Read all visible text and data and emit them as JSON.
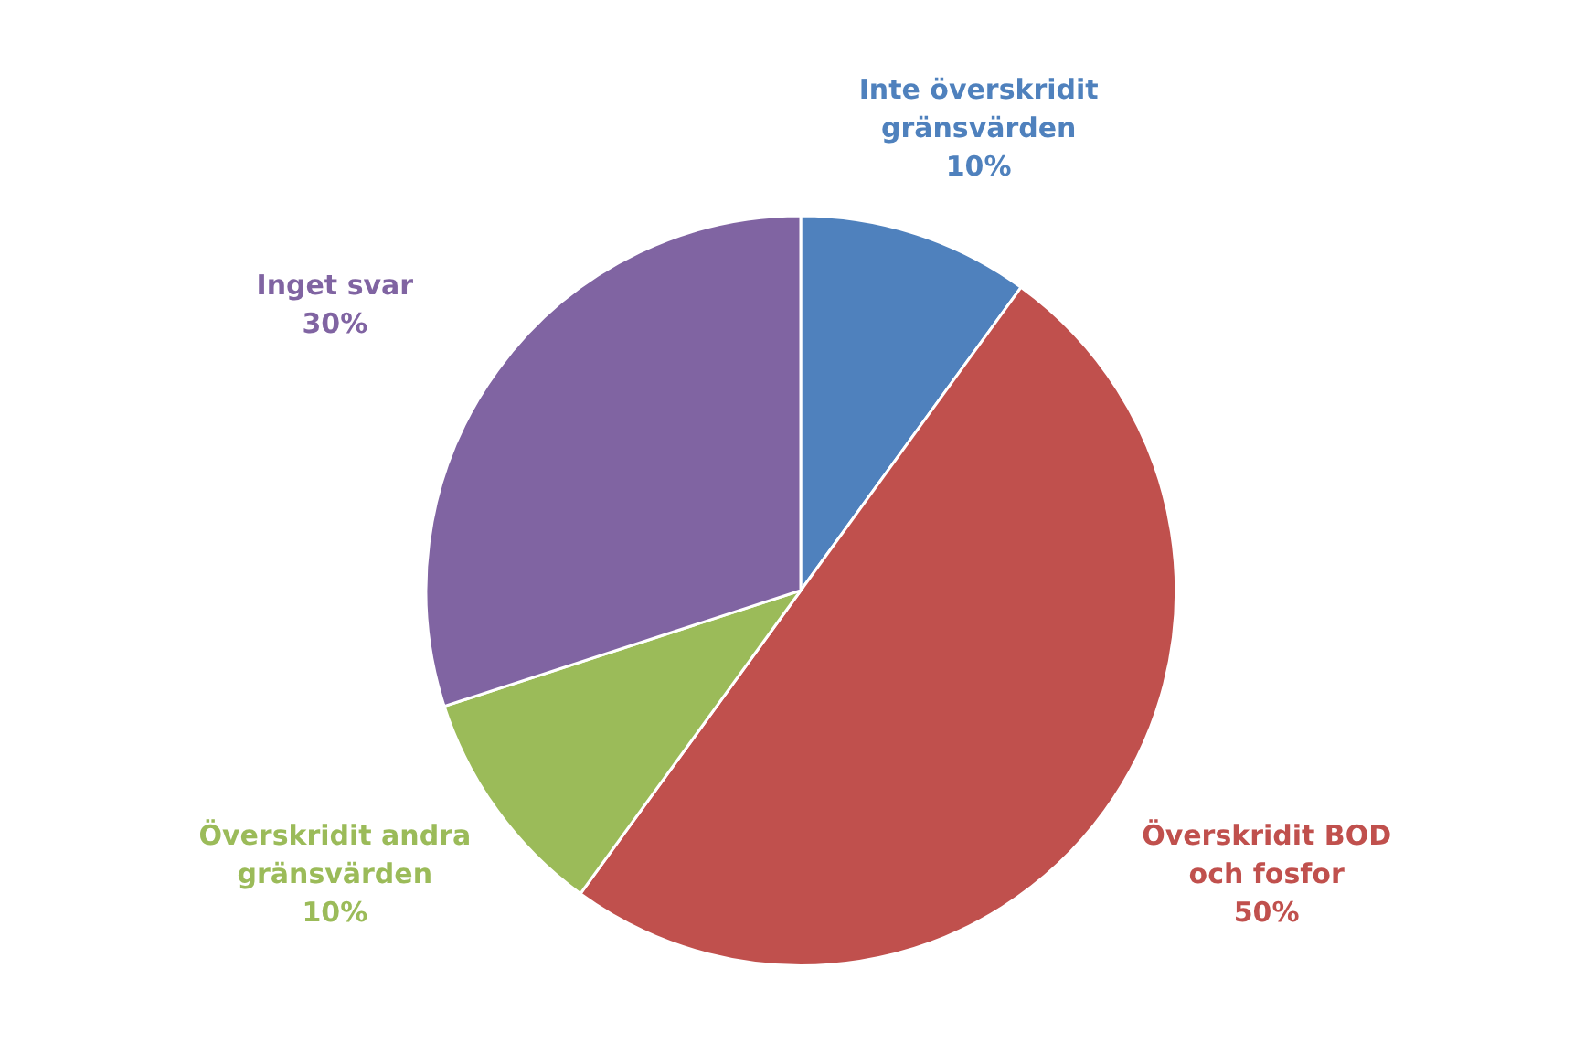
{
  "chart_data": {
    "type": "pie",
    "categories": [
      "Inte överskridit gränsvärden",
      "Överskridit BOD och fosfor",
      "Överskridit andra gränsvärden",
      "Inget svar"
    ],
    "values": [
      10,
      50,
      10,
      30
    ],
    "value_labels": [
      "10%",
      "50%",
      "10%",
      "30%"
    ],
    "colors": [
      "#4f81bd",
      "#c0504d",
      "#9bbb59",
      "#8064a2"
    ]
  }
}
